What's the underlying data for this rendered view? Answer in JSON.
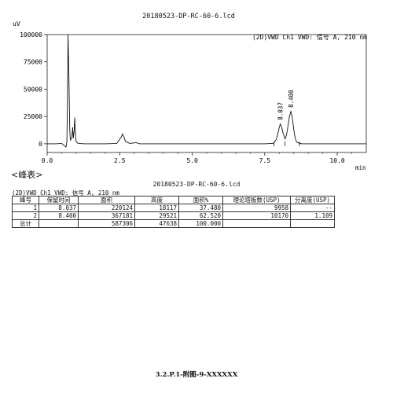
{
  "report": {
    "title": "20180523-DP-RC-60-6.lcd",
    "peak_table_heading": "<峰表>",
    "table_title": "20180523-DP-RC-60-6.lcd",
    "table_subtitle": "(2D)VWD Ch1 VWD: 信号 A, 210 nm",
    "footer": "3.2.P.1-附图-9-XXXXXX"
  },
  "peak_table": {
    "headers": [
      "峰号",
      "保留时间",
      "面积",
      "高度",
      "面积%",
      "理论塔板数(USP)",
      "分离度(USP)"
    ],
    "rows": [
      [
        "1",
        "8.037",
        "220124",
        "18117",
        "37.480",
        "9958",
        "--"
      ],
      [
        "2",
        "8.400",
        "367181",
        "29521",
        "62.520",
        "10170",
        "1.109"
      ],
      [
        "总计",
        "",
        "587306",
        "47638",
        "100.000",
        "",
        ""
      ]
    ]
  },
  "chart_data": {
    "type": "line",
    "title": "",
    "signal_label": "(2D)VWD Ch1 VWD: 信号 A, 210 nm",
    "ylabel": "uV",
    "xlabel": "min",
    "xlim": [
      0,
      11
    ],
    "ylim": [
      -8000,
      100000
    ],
    "x_ticks": [
      "0.0",
      "2.5",
      "5.0",
      "7.5",
      "10.0"
    ],
    "x_tick_values": [
      0,
      2.5,
      5,
      7.5,
      10
    ],
    "y_ticks": [
      "0",
      "25000",
      "50000",
      "75000",
      "100000"
    ],
    "y_tick_values": [
      0,
      25000,
      50000,
      75000,
      100000
    ],
    "peak_labels": [
      {
        "text": "8.037",
        "x": 8.037,
        "y": 18117
      },
      {
        "text": "8.400",
        "x": 8.4,
        "y": 29521
      }
    ],
    "integration_marks_x": [
      7.82,
      8.2,
      8.7
    ],
    "series": [
      {
        "x": [
          0,
          0.3,
          0.5,
          0.6,
          0.65,
          0.68,
          0.7,
          0.72,
          0.75,
          0.78,
          0.8,
          0.85,
          0.88,
          0.9,
          0.93,
          0.95,
          0.98,
          1.0,
          1.05,
          1.15,
          1.3,
          1.6,
          2.0,
          2.4,
          2.55,
          2.6,
          2.65,
          2.7,
          2.85,
          3.0,
          3.05,
          3.1,
          3.2,
          3.5,
          4.0,
          5.0,
          6.0,
          7.0,
          7.5,
          7.8,
          7.9,
          7.95,
          8.0,
          8.037,
          8.08,
          8.13,
          8.2,
          8.25,
          8.3,
          8.35,
          8.4,
          8.45,
          8.5,
          8.55,
          8.6,
          8.7,
          8.8,
          9.0,
          10.0,
          11.0
        ],
        "y": [
          0,
          0,
          300,
          -2000,
          -3000,
          2000,
          40000,
          100000,
          60000,
          12000,
          3000,
          6000,
          15000,
          5000,
          12000,
          24000,
          6000,
          2000,
          500,
          200,
          0,
          0,
          0,
          300,
          6000,
          9000,
          6000,
          2000,
          300,
          800,
          1200,
          700,
          0,
          0,
          0,
          0,
          0,
          0,
          0,
          400,
          4000,
          9000,
          15000,
          18117,
          15500,
          10000,
          4500,
          8000,
          16000,
          25000,
          29521,
          24000,
          13000,
          5000,
          1500,
          300,
          0,
          0,
          0,
          0
        ]
      }
    ]
  }
}
